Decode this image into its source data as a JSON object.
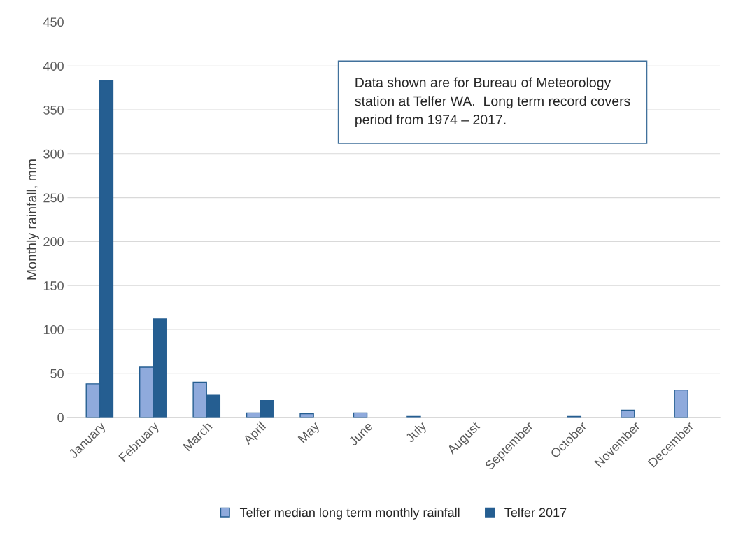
{
  "chart_data": {
    "type": "bar",
    "ylabel": "Monthly rainfall, mm",
    "categories": [
      "January",
      "February",
      "March",
      "April",
      "May",
      "June",
      "July",
      "August",
      "September",
      "October",
      "November",
      "December"
    ],
    "series": [
      {
        "name": "Telfer median long term monthly rainfall",
        "color": "#8faadc",
        "values": [
          38,
          57,
          40,
          5,
          4,
          5,
          1,
          0,
          0,
          1,
          8,
          31
        ]
      },
      {
        "name": "Telfer 2017",
        "color": "#255e91",
        "values": [
          383,
          112,
          25,
          19,
          null,
          null,
          null,
          null,
          null,
          null,
          null,
          null
        ]
      }
    ],
    "ylim": [
      0,
      450
    ],
    "yticks": [
      0,
      50,
      100,
      150,
      200,
      250,
      300,
      350,
      400,
      450
    ],
    "grid": "y",
    "legend": "bottom",
    "annotations": [
      "Data shown are for Bureau of Meteorology\nstation at Telfer WA.  Long term record covers\nperiod from 1974 – 2017."
    ]
  }
}
